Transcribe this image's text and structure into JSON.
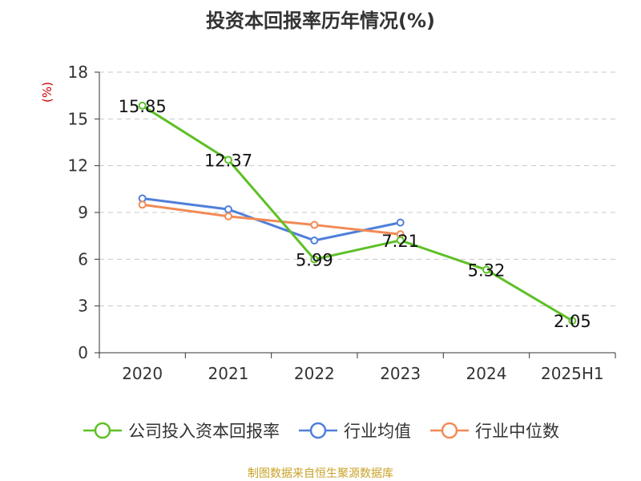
{
  "title": "投资本回报率历年情况(%)",
  "unit_label": "(%)",
  "source": "制图数据来自恒生聚源数据库",
  "colors": {
    "company": "#5ec027",
    "industry_avg": "#4f7fdb",
    "industry_median": "#f28a55",
    "grid": "#c8c8c8",
    "axis": "#333333"
  },
  "chart_data": {
    "type": "line",
    "title": "投资本回报率历年情况(%)",
    "ylabel": "(%)",
    "xlabel": "",
    "categories": [
      "2020",
      "2021",
      "2022",
      "2023",
      "2024",
      "2025H1"
    ],
    "ylim": [
      0,
      18
    ],
    "yticks": [
      "0",
      "3",
      "6",
      "9",
      "12",
      "15",
      "18"
    ],
    "grid": true,
    "legend_position": "bottom",
    "series": [
      {
        "name": "公司投入资本回报率",
        "values": [
          15.85,
          12.37,
          5.99,
          7.21,
          5.32,
          2.05
        ],
        "labels": [
          "15.85",
          "12.37",
          "5.99",
          "7.21",
          "5.32",
          "2.05"
        ]
      },
      {
        "name": "行业均值",
        "values": [
          9.9,
          9.2,
          7.2,
          8.35,
          null,
          null
        ]
      },
      {
        "name": "行业中位数",
        "values": [
          9.5,
          8.75,
          8.2,
          7.6,
          null,
          null
        ]
      }
    ]
  }
}
